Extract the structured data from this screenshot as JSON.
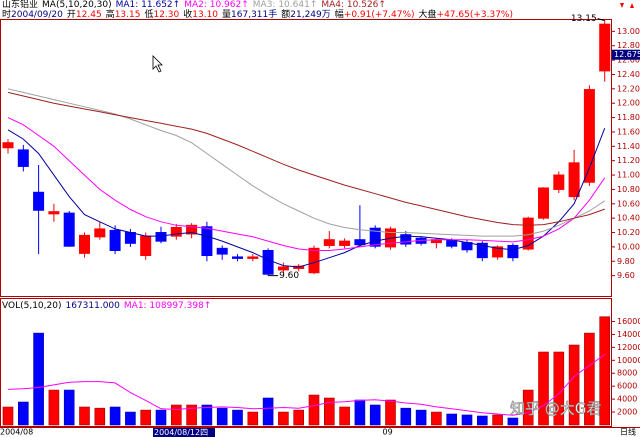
{
  "header": {
    "name": "山东铝业",
    "ma_params": "MA(5,10,20,30)",
    "info": [
      {
        "label": "时",
        "value": "2004/09/20",
        "color": "#000080"
      },
      {
        "label": "开",
        "value": "12.45",
        "color": "#ff0000"
      },
      {
        "label": "高",
        "value": "13.15",
        "color": "#ff0000"
      },
      {
        "label": "低",
        "value": "12.30",
        "color": "#ff0000"
      },
      {
        "label": "收",
        "value": "13.10",
        "color": "#ff0000"
      },
      {
        "label": "量",
        "value": "167,311手",
        "color": "#000080"
      },
      {
        "label": "额",
        "value": "21,249万",
        "color": "#000080"
      },
      {
        "label": "幅",
        "value": "+0.91(+7.47%)",
        "color": "#ff0000"
      },
      {
        "label": "大盘",
        "value": "+47.65(+3.37%)",
        "color": "#ff0000"
      }
    ]
  },
  "watermark": "知乎 @大G君",
  "period": "日线",
  "chart_data": [
    {
      "type": "candlestick",
      "up_color": "#ff0000",
      "down_color": "#0000ff",
      "open": [
        11.38,
        11.35,
        10.76,
        10.46,
        10.47,
        9.91,
        10.14,
        10.23,
        10.2,
        9.88,
        10.2,
        10.15,
        10.18,
        10.28,
        9.98,
        9.86,
        9.84,
        9.95,
        9.68,
        9.7,
        9.64,
        10.02,
        10.02,
        10.1,
        10.26,
        10.0,
        10.17,
        10.12,
        10.06,
        10.09,
        10.06,
        10.05,
        9.86,
        10.02,
        9.97,
        10.4,
        10.8,
        10.7,
        10.9,
        12.45
      ],
      "high": [
        11.5,
        11.42,
        11.14,
        10.6,
        10.5,
        10.2,
        10.35,
        10.3,
        10.25,
        10.2,
        10.28,
        10.32,
        10.33,
        10.35,
        10.02,
        9.9,
        9.9,
        9.98,
        9.78,
        9.76,
        10.02,
        10.22,
        10.12,
        10.58,
        10.3,
        10.28,
        10.22,
        10.15,
        10.12,
        10.12,
        10.1,
        10.08,
        10.02,
        10.05,
        10.42,
        10.83,
        11.05,
        11.35,
        12.25,
        13.15
      ],
      "low": [
        11.3,
        11.05,
        9.9,
        10.35,
        10.0,
        9.85,
        10.1,
        9.9,
        10.0,
        9.82,
        10.05,
        10.1,
        10.12,
        9.8,
        9.82,
        9.8,
        9.8,
        9.6,
        9.63,
        9.66,
        9.62,
        9.98,
        9.98,
        10.0,
        9.98,
        9.96,
        10.0,
        10.02,
        9.98,
        9.98,
        9.92,
        9.8,
        9.82,
        9.8,
        9.95,
        10.38,
        10.75,
        10.65,
        10.85,
        12.3
      ],
      "close": [
        11.45,
        11.12,
        10.51,
        10.49,
        10.01,
        10.16,
        10.25,
        9.95,
        10.05,
        10.15,
        10.08,
        10.27,
        10.3,
        9.88,
        9.9,
        9.84,
        9.86,
        9.62,
        9.72,
        9.73,
        9.98,
        10.1,
        10.08,
        10.03,
        10.01,
        10.25,
        10.04,
        10.05,
        10.1,
        10.01,
        9.96,
        9.85,
        10.0,
        9.85,
        10.4,
        10.82,
        11.0,
        11.17,
        12.19,
        13.1
      ],
      "series": [
        {
          "name": "MA1: 11.652↑",
          "color": "#0000a0",
          "values": [
            11.63,
            11.5,
            11.3,
            11.0,
            10.7,
            10.45,
            10.35,
            10.25,
            10.2,
            10.15,
            10.15,
            10.18,
            10.2,
            10.15,
            10.08,
            10.0,
            9.92,
            9.82,
            9.74,
            9.72,
            9.78,
            9.85,
            9.92,
            10.02,
            10.08,
            10.12,
            10.15,
            10.14,
            10.12,
            10.1,
            10.06,
            10.02,
            9.98,
            9.96,
            10.02,
            10.15,
            10.35,
            10.6,
            11.1,
            11.652
          ]
        },
        {
          "name": "MA2: 10.962↑",
          "color": "#ff00ff",
          "values": [
            11.8,
            11.7,
            11.55,
            11.4,
            11.2,
            11.0,
            10.8,
            10.65,
            10.52,
            10.42,
            10.35,
            10.3,
            10.28,
            10.26,
            10.22,
            10.18,
            10.14,
            10.08,
            10.02,
            9.97,
            9.95,
            9.95,
            9.97,
            10.0,
            10.03,
            10.05,
            10.07,
            10.09,
            10.1,
            10.1,
            10.1,
            10.09,
            10.08,
            10.07,
            10.1,
            10.15,
            10.25,
            10.4,
            10.65,
            10.962
          ]
        },
        {
          "name": "MA3: 10.641↑",
          "color": "#a0a0a0",
          "values": [
            12.2,
            12.15,
            12.1,
            12.05,
            12.0,
            11.95,
            11.9,
            11.85,
            11.78,
            11.7,
            11.62,
            11.55,
            11.45,
            11.3,
            11.15,
            11.0,
            10.85,
            10.72,
            10.6,
            10.5,
            10.4,
            10.32,
            10.27,
            10.24,
            10.22,
            10.2,
            10.2,
            10.19,
            10.18,
            10.17,
            10.16,
            10.15,
            10.15,
            10.15,
            10.17,
            10.22,
            10.3,
            10.4,
            10.5,
            10.641
          ]
        },
        {
          "name": "MA4: 10.526↑",
          "color": "#a02020",
          "values": [
            12.15,
            12.1,
            12.05,
            12.0,
            11.96,
            11.92,
            11.88,
            11.84,
            11.8,
            11.76,
            11.72,
            11.68,
            11.64,
            11.58,
            11.5,
            11.42,
            11.33,
            11.24,
            11.15,
            11.07,
            11.0,
            10.93,
            10.86,
            10.8,
            10.74,
            10.68,
            10.62,
            10.57,
            10.52,
            10.47,
            10.42,
            10.38,
            10.34,
            10.31,
            10.3,
            10.31,
            10.35,
            10.4,
            10.45,
            10.526
          ]
        }
      ],
      "ylim": [
        9.4,
        13.2
      ],
      "yticks": [
        {
          "value": 9.6,
          "label": "9.60"
        },
        {
          "value": 9.8,
          "label": "9.80"
        },
        {
          "value": 10,
          "label": "10.00"
        },
        {
          "value": 10.2,
          "label": "10.20"
        },
        {
          "value": 10.4,
          "label": "10.40"
        },
        {
          "value": 10.6,
          "label": "10.60"
        },
        {
          "value": 10.8,
          "label": "10.80"
        },
        {
          "value": 11,
          "label": "11.00"
        },
        {
          "value": 11.2,
          "label": "11.20"
        },
        {
          "value": 11.4,
          "label": "11.40"
        },
        {
          "value": 11.6,
          "label": "11.60"
        },
        {
          "value": 11.8,
          "label": "11.80"
        },
        {
          "value": 12,
          "label": "12.00"
        },
        {
          "value": 12.2,
          "label": "12.20"
        },
        {
          "value": 12.4,
          "label": "12.40"
        },
        {
          "value": 12.6,
          "label": "12.60"
        },
        {
          "value": 12.8,
          "label": "12.80"
        },
        {
          "value": 13,
          "label": "13.00"
        }
      ],
      "cursor_value": 12.675,
      "cursor_label": "12.675",
      "high_label": "13.15",
      "low_label": "9.60"
    },
    {
      "type": "bar",
      "title": "VOL(5,10,20)",
      "current": "167311.000",
      "categories": [
        "2004/08",
        null,
        null,
        null,
        null,
        null,
        null,
        null,
        null,
        null,
        null,
        null,
        null,
        null,
        null,
        null,
        null,
        null,
        null,
        null,
        null,
        null,
        null,
        null,
        null,
        "09",
        null,
        null,
        null,
        null,
        null,
        null,
        null,
        null,
        null,
        null,
        null,
        null,
        null,
        null
      ],
      "cursor_date": "2004/08/12四",
      "values": [
        2780,
        3550,
        14200,
        5400,
        5400,
        2780,
        2600,
        2780,
        2000,
        2300,
        2300,
        3090,
        3090,
        3090,
        2600,
        2300,
        2000,
        4170,
        2000,
        2300,
        4630,
        4170,
        2780,
        3860,
        3090,
        3860,
        2600,
        2300,
        2000,
        1700,
        1550,
        1390,
        1550,
        1080,
        5400,
        11280,
        11280,
        12360,
        14200,
        16731
      ],
      "series": [
        {
          "name": "MA1: 108997.398↑",
          "color": "#ff00ff",
          "values": [
            5500,
            5600,
            5800,
            6200,
            6600,
            6700,
            6700,
            6500,
            5000,
            3800,
            2500,
            2400,
            2600,
            2700,
            2800,
            2700,
            2500,
            2600,
            2700,
            2600,
            3000,
            3500,
            3600,
            3800,
            3900,
            3700,
            3400,
            3200,
            2800,
            2500,
            2200,
            1900,
            1700,
            1500,
            1900,
            3000,
            4800,
            7500,
            9200,
            10900
          ]
        }
      ],
      "ylim": [
        0,
        17000
      ],
      "yticks": [
        2000,
        4000,
        6000,
        8000,
        10000,
        12000,
        14000,
        16000
      ]
    }
  ]
}
